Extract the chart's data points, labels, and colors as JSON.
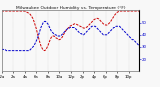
{
  "title": "Milwaukee Outdoor Humidity vs. Temperature (°F)",
  "bg_color": "#f8f8f8",
  "grid_color": "#bbbbbb",
  "humidity_color": "#cc0000",
  "temp_color": "#0000cc",
  "ylim_humidity": [
    0,
    100
  ],
  "ylim_temp": [
    10,
    60
  ],
  "humidity_data": [
    99,
    99,
    99,
    99,
    99,
    99,
    99,
    99,
    99,
    99,
    99,
    99,
    99,
    99,
    99,
    99,
    99,
    99,
    99,
    99,
    99,
    98,
    97,
    96,
    95,
    93,
    90,
    87,
    82,
    76,
    70,
    62,
    55,
    48,
    42,
    38,
    35,
    34,
    35,
    38,
    42,
    47,
    52,
    56,
    58,
    58,
    57,
    55,
    54,
    52,
    52,
    53,
    55,
    58,
    62,
    65,
    68,
    70,
    72,
    74,
    75,
    76,
    77,
    78,
    78,
    77,
    76,
    75,
    74,
    73,
    72,
    71,
    71,
    72,
    73,
    75,
    77,
    79,
    81,
    83,
    85,
    86,
    87,
    87,
    86,
    84,
    82,
    80,
    78,
    77,
    76,
    76,
    77,
    79,
    81,
    84,
    87,
    90,
    93,
    95,
    97,
    98,
    99,
    99,
    99,
    99,
    99,
    99,
    99,
    99,
    99,
    99,
    99,
    99,
    99,
    99,
    99,
    99,
    99,
    99
  ],
  "temp_data": [
    28,
    28,
    28,
    28,
    27,
    27,
    27,
    27,
    27,
    27,
    27,
    27,
    27,
    27,
    27,
    27,
    27,
    27,
    27,
    27,
    27,
    27,
    27,
    27,
    27,
    28,
    29,
    30,
    31,
    33,
    35,
    37,
    40,
    43,
    46,
    48,
    50,
    51,
    51,
    50,
    49,
    47,
    45,
    43,
    42,
    41,
    40,
    40,
    39,
    39,
    39,
    39,
    40,
    41,
    42,
    43,
    44,
    45,
    45,
    46,
    46,
    46,
    46,
    46,
    45,
    44,
    43,
    42,
    41,
    41,
    40,
    40,
    41,
    42,
    43,
    44,
    45,
    46,
    47,
    47,
    47,
    47,
    46,
    45,
    44,
    43,
    42,
    41,
    40,
    40,
    40,
    40,
    41,
    42,
    43,
    44,
    45,
    46,
    46,
    47,
    47,
    47,
    47,
    46,
    45,
    44,
    43,
    42,
    41,
    40,
    39,
    38,
    37,
    36,
    36,
    35,
    34,
    33,
    32,
    31
  ],
  "n_points": 120,
  "x_tick_labels": [
    "12a",
    "2a",
    "4a",
    "6a",
    "8a",
    "10a",
    "12p",
    "2p",
    "4p",
    "6p",
    "8p",
    "10p"
  ],
  "x_tick_positions": [
    0,
    10,
    20,
    30,
    40,
    50,
    60,
    70,
    80,
    90,
    100,
    110
  ],
  "right_yticks": [
    20,
    30,
    40,
    50
  ],
  "right_yticklabels": [
    "20",
    "30",
    "40",
    "50"
  ]
}
